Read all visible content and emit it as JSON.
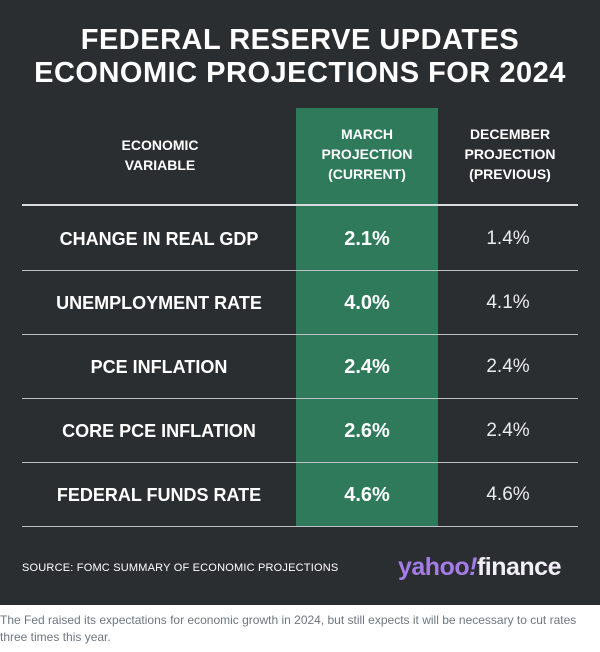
{
  "chart_data": {
    "type": "table",
    "title": [
      "FEDERAL RESERVE UPDATES",
      "ECONOMIC PROJECTIONS FOR 2024"
    ],
    "columns": {
      "variable": [
        "ECONOMIC",
        "VARIABLE"
      ],
      "march": [
        "MARCH",
        "PROJECTION",
        "(CURRENT)"
      ],
      "december": [
        "DECEMBER",
        "PROJECTION",
        "(PREVIOUS)"
      ]
    },
    "rows": [
      {
        "variable": "CHANGE IN REAL GDP",
        "march": "2.1%",
        "december": "1.4%"
      },
      {
        "variable": "UNEMPLOYMENT RATE",
        "march": "4.0%",
        "december": "4.1%"
      },
      {
        "variable": "PCE INFLATION",
        "march": "2.4%",
        "december": "2.4%"
      },
      {
        "variable": "CORE PCE INFLATION",
        "march": "2.6%",
        "december": "2.4%"
      },
      {
        "variable": "FEDERAL FUNDS RATE",
        "march": "4.6%",
        "december": "4.6%"
      }
    ],
    "source": "SOURCE: FOMC SUMMARY OF ECONOMIC PROJECTIONS"
  },
  "logo": {
    "yahoo": "yahoo",
    "bang": "!",
    "finance": "finance"
  },
  "caption": "The Fed raised its expectations for economic growth in 2024, but still expects it will be necessary to cut rates three times this year.",
  "colors": {
    "background": "#2b2e31",
    "highlight_column": "#2f7a5a",
    "text": "#ffffff",
    "logo_purple": "#a57be8",
    "caption_text": "#6e7780"
  }
}
